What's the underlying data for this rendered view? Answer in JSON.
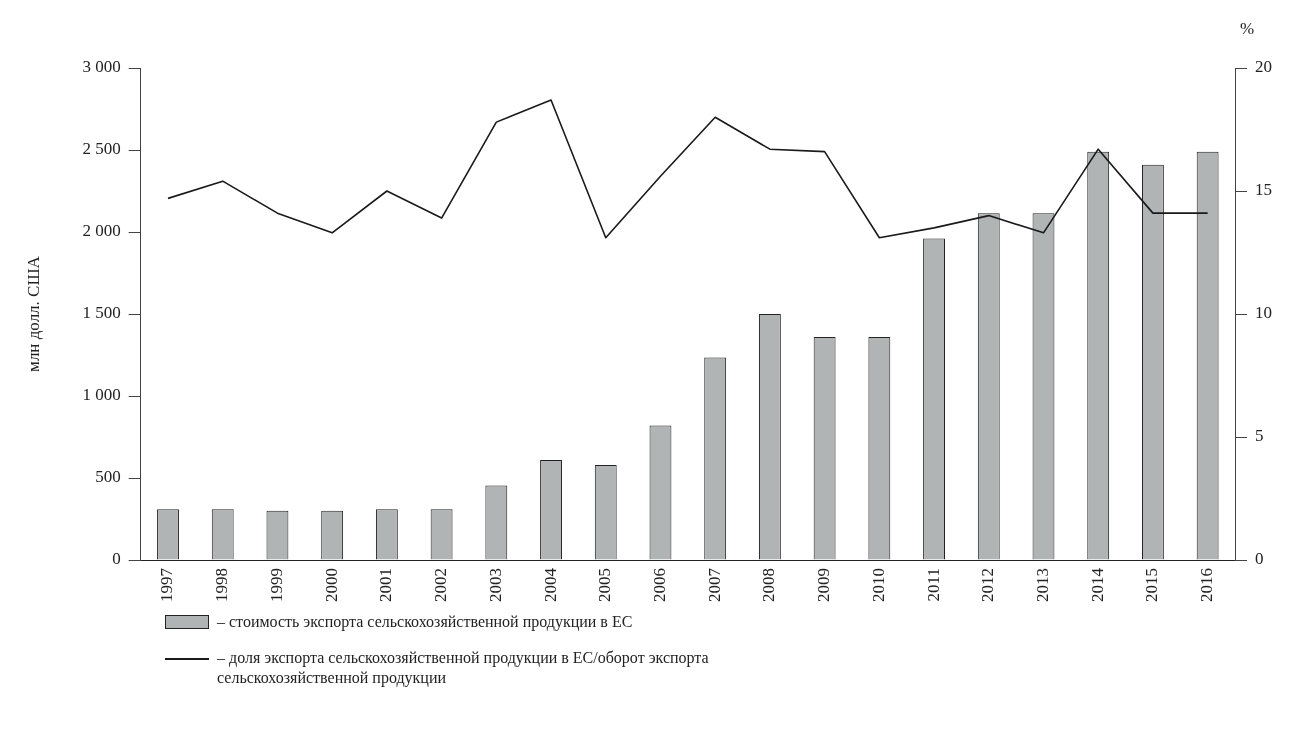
{
  "chart_data": {
    "type": "bar",
    "ylabel": "млн долл. США",
    "y2label": "%",
    "categories": [
      "1997",
      "1998",
      "1999",
      "2000",
      "2001",
      "2002",
      "2003",
      "2004",
      "2005",
      "2006",
      "2007",
      "2008",
      "2009",
      "2010",
      "2011",
      "2012",
      "2013",
      "2014",
      "2015",
      "2016"
    ],
    "series": [
      {
        "name": "– стоимость экспорта сельскохозяйственной продукции в ЕС",
        "color": "#b1b4b4",
        "values": [
          310,
          310,
          300,
          300,
          310,
          310,
          455,
          610,
          580,
          820,
          1235,
          1500,
          1360,
          1360,
          1960,
          2115,
          2115,
          2490,
          2410,
          2490
        ]
      },
      {
        "type": "line",
        "axis": "y2",
        "name": "– доля экспорта сельскохозяйственной продукции в ЕС/оборот экспорта сельскохозяйственной продукции",
        "color": "#1a1a1a",
        "values": [
          14.7,
          15.4,
          14.1,
          13.3,
          15.0,
          13.9,
          17.8,
          18.7,
          13.1,
          15.6,
          18.0,
          16.7,
          16.6,
          13.1,
          13.5,
          14.0,
          13.3,
          16.7,
          14.1,
          14.1
        ]
      }
    ],
    "ylim": [
      0,
      3000
    ],
    "yticks": [
      0,
      500,
      {
        "value": 1000,
        "label": "1 000"
      },
      {
        "value": 1500,
        "label": "1 500"
      },
      {
        "value": 2000,
        "label": "2 000"
      },
      {
        "value": 2500,
        "label": "2 500"
      },
      {
        "value": 3000,
        "label": "3 000"
      }
    ],
    "y2lim": [
      0,
      20
    ],
    "y2ticks": [
      0,
      5,
      10,
      15,
      20
    ],
    "grid": false,
    "legend": "bottom",
    "marker": "none",
    "line_style": "solid"
  }
}
